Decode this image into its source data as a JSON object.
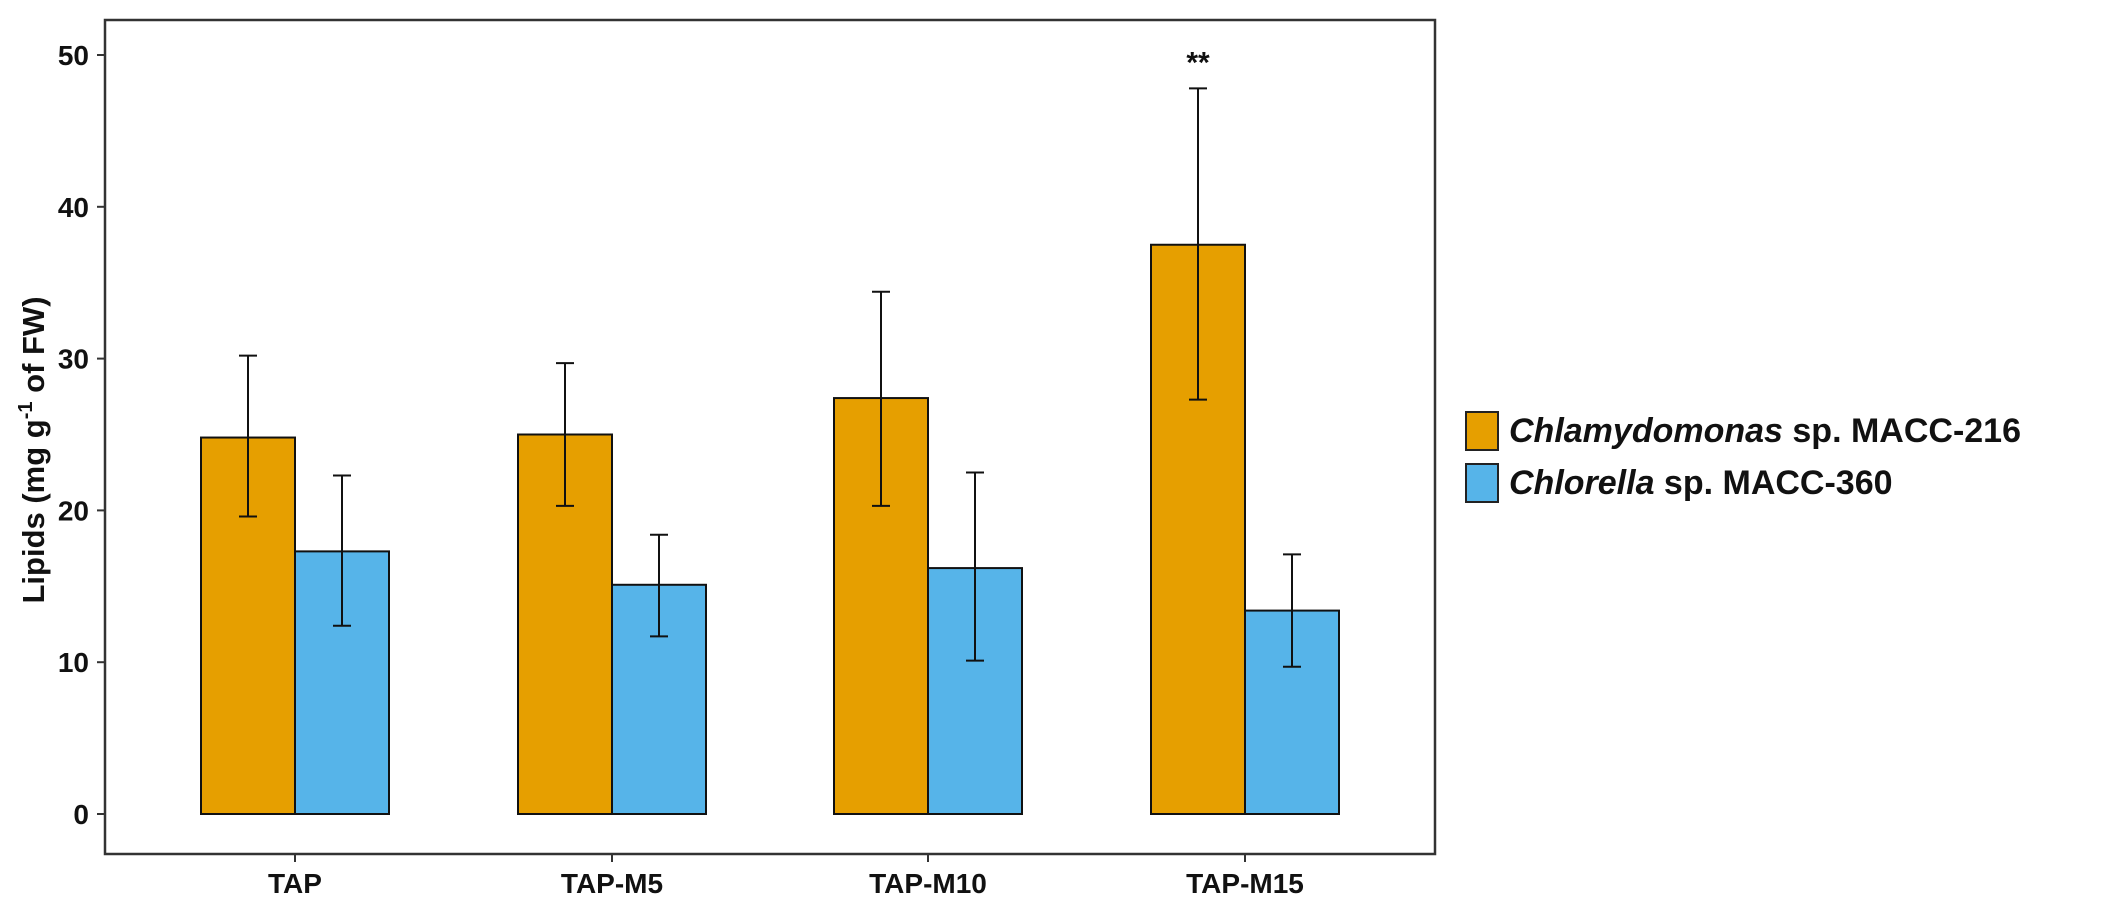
{
  "chart_data": {
    "type": "bar",
    "title": "",
    "xlabel": "",
    "ylabel": "Lipids (mg g-1 of FW)",
    "ylabel_parts": {
      "pre": "Lipids (mg g",
      "sup": "-1",
      "post": " of FW)"
    },
    "ylim": [
      0,
      52
    ],
    "yticks": [
      "0",
      "10",
      "20",
      "30",
      "40",
      "50"
    ],
    "categories": [
      "TAP",
      "TAP-M5",
      "TAP-M10",
      "TAP-M15"
    ],
    "series": [
      {
        "name": "Chlamydomonas sp. MACC-216",
        "genus": "Chlamydomonas",
        "rest": " sp. MACC-216",
        "color": "#E69F00",
        "values": [
          24.8,
          25.0,
          27.4,
          37.5
        ],
        "err_low": [
          19.6,
          20.3,
          20.3,
          27.3
        ],
        "err_high": [
          30.2,
          29.7,
          34.4,
          47.8
        ]
      },
      {
        "name": "Chlorella sp. MACC-360",
        "genus": "Chlorella",
        "rest": " sp. MACC-360",
        "color": "#56B4E9",
        "values": [
          17.3,
          15.1,
          16.2,
          13.4
        ],
        "err_low": [
          12.4,
          11.7,
          10.1,
          9.7
        ],
        "err_high": [
          22.3,
          18.4,
          22.5,
          17.1
        ]
      }
    ],
    "annotations": [
      {
        "category": "TAP-M15",
        "series": 0,
        "text": "**"
      }
    ],
    "legend_position": "right",
    "grid": false
  }
}
